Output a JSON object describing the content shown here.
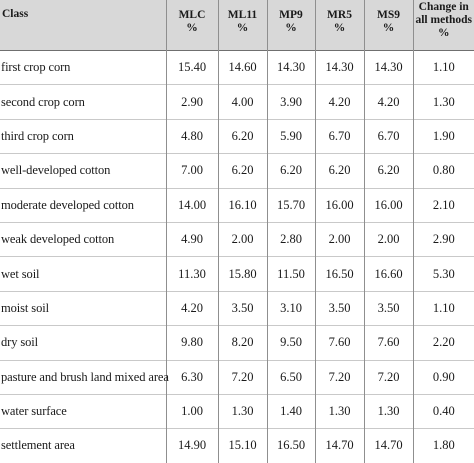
{
  "table": {
    "headers": [
      "Class",
      "MLC %",
      "ML11 %",
      "MP9 %",
      "MR5 %",
      "MS9 %",
      "Change in all methods %"
    ],
    "header_lines": {
      "mlc": [
        "MLC",
        "%"
      ],
      "ml11": [
        "ML11",
        "%"
      ],
      "mp9": [
        "MP9",
        "%"
      ],
      "mr5": [
        "MR5",
        "%"
      ],
      "ms9": [
        "MS9",
        "%"
      ],
      "change": [
        "Change in",
        "all methods",
        "%"
      ]
    },
    "rows": [
      [
        "first crop corn",
        "15.40",
        "14.60",
        "14.30",
        "14.30",
        "14.30",
        "1.10"
      ],
      [
        "second crop corn",
        "2.90",
        "4.00",
        "3.90",
        "4.20",
        "4.20",
        "1.30"
      ],
      [
        "third crop corn",
        "4.80",
        "6.20",
        "5.90",
        "6.70",
        "6.70",
        "1.90"
      ],
      [
        "well-developed cotton",
        "7.00",
        "6.20",
        "6.20",
        "6.20",
        "6.20",
        "0.80"
      ],
      [
        "moderate developed cotton",
        "14.00",
        "16.10",
        "15.70",
        "16.00",
        "16.00",
        "2.10"
      ],
      [
        "weak developed cotton",
        "4.90",
        "2.00",
        "2.80",
        "2.00",
        "2.00",
        "2.90"
      ],
      [
        "wet soil",
        "11.30",
        "15.80",
        "11.50",
        "16.50",
        "16.60",
        "5.30"
      ],
      [
        "moist soil",
        "4.20",
        "3.50",
        "3.10",
        "3.50",
        "3.50",
        "1.10"
      ],
      [
        "dry soil",
        "9.80",
        "8.20",
        "9.50",
        "7.60",
        "7.60",
        "2.20"
      ],
      [
        "pasture and brush land mixed area",
        "6.30",
        "7.20",
        "6.50",
        "7.20",
        "7.20",
        "0.90"
      ],
      [
        "water surface",
        "1.00",
        "1.30",
        "1.40",
        "1.30",
        "1.30",
        "0.40"
      ],
      [
        "settlement area",
        "14.90",
        "15.10",
        "16.50",
        "14.70",
        "14.70",
        "1.80"
      ]
    ]
  }
}
